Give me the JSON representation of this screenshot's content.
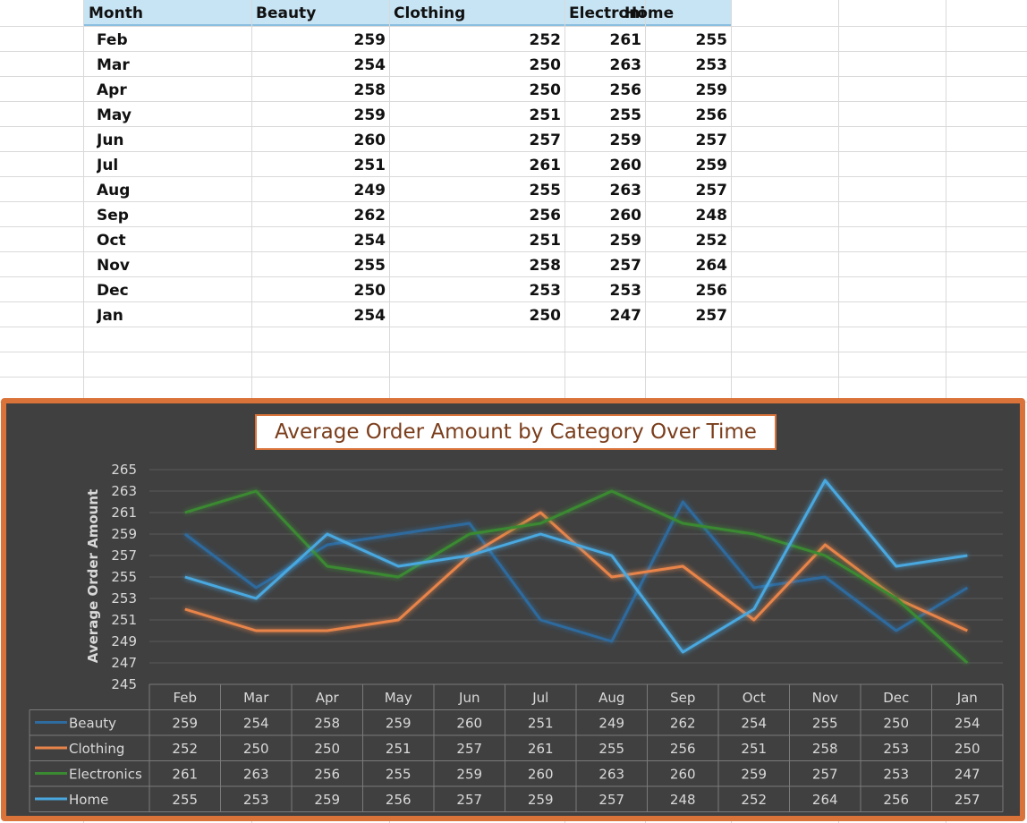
{
  "sheet": {
    "headers": [
      "Month",
      "Beauty",
      "Clothing",
      "Electroni",
      "Home"
    ],
    "rows": [
      {
        "month": "Feb",
        "beauty": 259,
        "clothing": 252,
        "electronics": 261,
        "home": 255
      },
      {
        "month": "Mar",
        "beauty": 254,
        "clothing": 250,
        "electronics": 263,
        "home": 253
      },
      {
        "month": "Apr",
        "beauty": 258,
        "clothing": 250,
        "electronics": 256,
        "home": 259
      },
      {
        "month": "May",
        "beauty": 259,
        "clothing": 251,
        "electronics": 255,
        "home": 256
      },
      {
        "month": "Jun",
        "beauty": 260,
        "clothing": 257,
        "electronics": 259,
        "home": 257
      },
      {
        "month": "Jul",
        "beauty": 251,
        "clothing": 261,
        "electronics": 260,
        "home": 259
      },
      {
        "month": "Aug",
        "beauty": 249,
        "clothing": 255,
        "electronics": 263,
        "home": 257
      },
      {
        "month": "Sep",
        "beauty": 262,
        "clothing": 256,
        "electronics": 260,
        "home": 248
      },
      {
        "month": "Oct",
        "beauty": 254,
        "clothing": 251,
        "electronics": 259,
        "home": 252
      },
      {
        "month": "Nov",
        "beauty": 255,
        "clothing": 258,
        "electronics": 257,
        "home": 264
      },
      {
        "month": "Dec",
        "beauty": 250,
        "clothing": 253,
        "electronics": 253,
        "home": 256
      },
      {
        "month": "Jan",
        "beauty": 254,
        "clothing": 250,
        "electronics": 247,
        "home": 257
      }
    ]
  },
  "chart_data": {
    "type": "line",
    "title": "Average Order Amount by Category Over Time",
    "xlabel": "",
    "ylabel": "Average Order Amount",
    "ylim": [
      245,
      265
    ],
    "yticks": [
      245,
      247,
      249,
      251,
      253,
      255,
      257,
      259,
      261,
      263,
      265
    ],
    "categories": [
      "Feb",
      "Mar",
      "Apr",
      "May",
      "Jun",
      "Jul",
      "Aug",
      "Sep",
      "Oct",
      "Nov",
      "Dec",
      "Jan"
    ],
    "series": [
      {
        "name": "Beauty",
        "color": "#2e6b9e",
        "values": [
          259,
          254,
          258,
          259,
          260,
          251,
          249,
          262,
          254,
          255,
          250,
          254
        ]
      },
      {
        "name": "Clothing",
        "color": "#e8844a",
        "values": [
          252,
          250,
          250,
          251,
          257,
          261,
          255,
          256,
          251,
          258,
          253,
          250
        ]
      },
      {
        "name": "Electronics",
        "color": "#3a8a32",
        "values": [
          261,
          263,
          256,
          255,
          259,
          260,
          263,
          260,
          259,
          257,
          253,
          247
        ]
      },
      {
        "name": "Home",
        "color": "#4aa8e0",
        "values": [
          255,
          253,
          259,
          256,
          257,
          259,
          257,
          248,
          252,
          264,
          256,
          257
        ]
      }
    ],
    "grid": true,
    "data_table": true,
    "legend": "data-table"
  },
  "colors": {
    "chart_border": "#d9733a",
    "chart_background": "#404040",
    "title_text": "#7a3d1b",
    "header_fill": "#c7e4f4"
  }
}
